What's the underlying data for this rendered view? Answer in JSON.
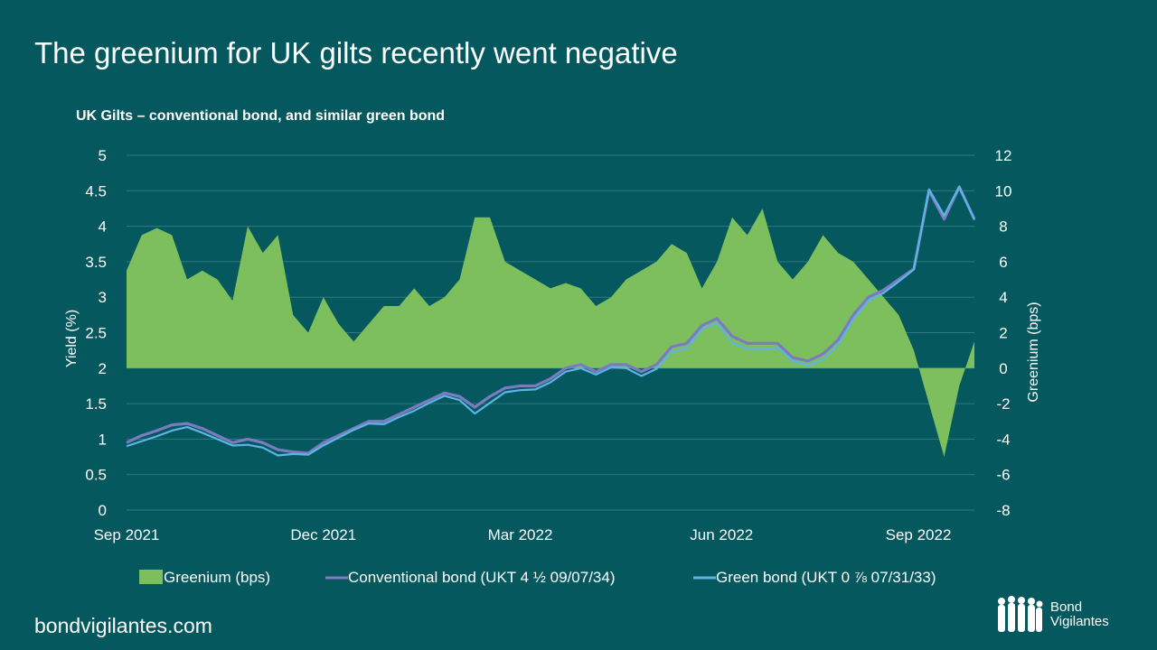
{
  "title": "The greenium for UK gilts recently went negative",
  "footer": "bondvigilantes.com",
  "logo": {
    "line1": "Bond",
    "line2": "Vigilantes"
  },
  "colors": {
    "background": "#04585e",
    "greenium": "#7dbf5c",
    "conventional": "#7b7bc0",
    "green_bond": "#5fb4e6"
  },
  "chart_data": {
    "type": "line+area",
    "title": "UK Gilts – conventional bond, and similar green bond",
    "x_unit": "weeks since 1 Sep 2021",
    "x_ticks": [
      {
        "x": 0,
        "label": "Sep 2021"
      },
      {
        "x": 13,
        "label": "Dec 2021"
      },
      {
        "x": 26,
        "label": "Mar 2022"
      },
      {
        "x": 39.3,
        "label": "Jun 2022"
      },
      {
        "x": 52.3,
        "label": "Sep 2022"
      }
    ],
    "xlim": [
      0,
      56
    ],
    "ylabel_left": "Yield (%)",
    "ylim_left": [
      0,
      5
    ],
    "yticks_left": [
      "0",
      "0.5",
      "1",
      "1.5",
      "2",
      "2.5",
      "3",
      "3.5",
      "4",
      "4.5",
      "5"
    ],
    "ylabel_right": "Greenium (bps)",
    "ylim_right": [
      -8,
      12
    ],
    "yticks_right": [
      "-8",
      "-6",
      "-4",
      "-2",
      "0",
      "2",
      "4",
      "6",
      "8",
      "10",
      "12"
    ],
    "grid": true,
    "legend_position": "bottom",
    "legend": [
      "Greenium (bps)",
      "Conventional bond (UKT 4 ½ 09/07/34)",
      "Green bond (UKT 0 ⅞ 07/31/33)"
    ],
    "series": [
      {
        "name": "Greenium (bps)",
        "axis": "right",
        "type": "area",
        "values": [
          5.5,
          7.5,
          7.9,
          7.5,
          5,
          5.5,
          5,
          3.8,
          8,
          6.5,
          7.5,
          3,
          2,
          4,
          2.5,
          1.5,
          2.5,
          3.5,
          3.5,
          4.5,
          3.5,
          4,
          5,
          8.5,
          8.5,
          6,
          5.5,
          5,
          4.5,
          4.8,
          4.5,
          3.5,
          4,
          5,
          5.5,
          6,
          7,
          6.5,
          4.5,
          6,
          8.5,
          7.5,
          9,
          6,
          5,
          6,
          7.5,
          6.5,
          6,
          5,
          4,
          3,
          1,
          -2,
          -5,
          -1,
          1.5
        ]
      },
      {
        "name": "Conventional bond (UKT 4 ½ 09/07/34)",
        "axis": "left",
        "type": "line",
        "values": [
          0.95,
          1.05,
          1.12,
          1.2,
          1.22,
          1.15,
          1.05,
          0.95,
          1.0,
          0.95,
          0.85,
          0.82,
          0.8,
          0.95,
          1.05,
          1.15,
          1.25,
          1.25,
          1.35,
          1.45,
          1.55,
          1.65,
          1.6,
          1.45,
          1.6,
          1.72,
          1.75,
          1.75,
          1.85,
          2.0,
          2.05,
          1.95,
          2.05,
          2.05,
          1.95,
          2.05,
          2.3,
          2.35,
          2.6,
          2.7,
          2.45,
          2.35,
          2.35,
          2.35,
          2.15,
          2.1,
          2.2,
          2.4,
          2.75,
          3.0,
          3.1,
          3.25,
          3.4,
          4.5,
          4.1,
          4.55,
          4.1
        ]
      },
      {
        "name": "Green bond (UKT 0 ⅞ 07/31/33)",
        "axis": "left",
        "type": "line",
        "values": [
          0.9,
          0.97,
          1.04,
          1.12,
          1.17,
          1.09,
          1.0,
          0.91,
          0.92,
          0.88,
          0.77,
          0.79,
          0.78,
          0.91,
          1.02,
          1.13,
          1.22,
          1.21,
          1.31,
          1.4,
          1.51,
          1.61,
          1.55,
          1.36,
          1.51,
          1.66,
          1.69,
          1.7,
          1.8,
          1.95,
          2.0,
          1.91,
          2.01,
          2.0,
          1.89,
          1.99,
          2.23,
          2.28,
          2.55,
          2.64,
          2.36,
          2.27,
          2.26,
          2.29,
          2.1,
          2.04,
          2.12,
          2.33,
          2.69,
          2.95,
          3.06,
          3.22,
          3.39,
          4.52,
          4.15,
          4.56,
          4.09
        ]
      }
    ]
  }
}
